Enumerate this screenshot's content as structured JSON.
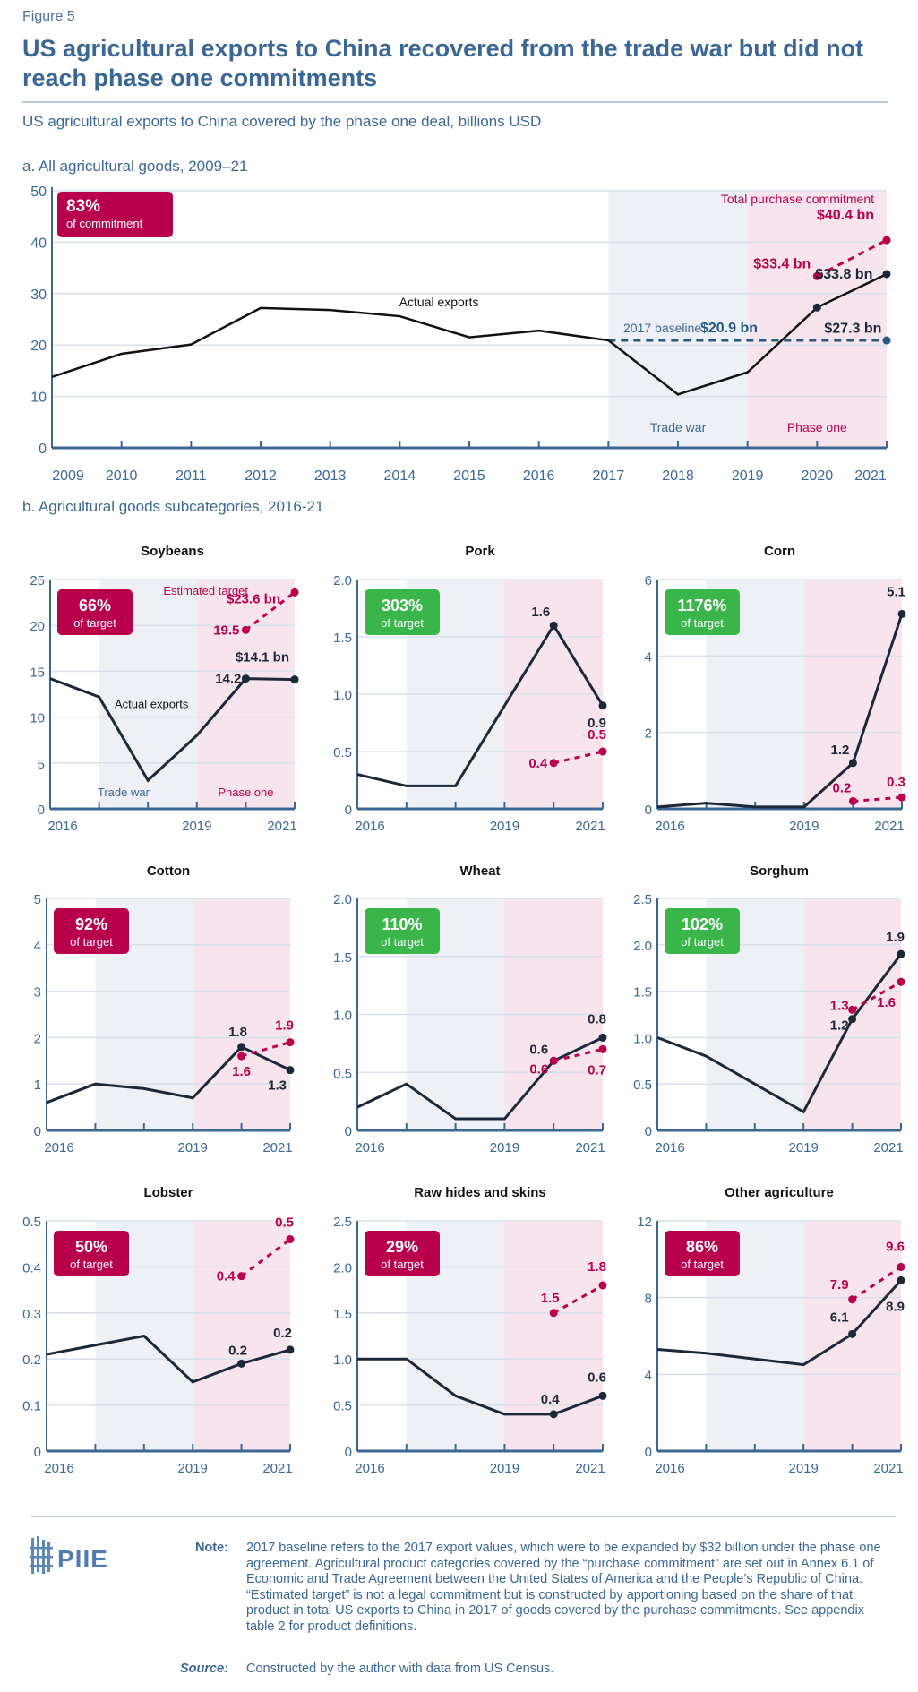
{
  "figure_label": "Figure 5",
  "title": "US agricultural exports to China recovered from the trade war but did not reach phase one commitments",
  "subtitle": "US agricultural exports to China covered by the phase one deal, billions USD",
  "colors": {
    "text_blue": "#3b6795",
    "crimson": "#b8004c",
    "green": "#3ab54a",
    "line": "#1b2838",
    "trade_war_shade": "#edf0f5",
    "phase_one_shade": "#f8e4ec",
    "baseline": "#235a82",
    "grid": "#d8e1eb"
  },
  "chart_data": [
    {
      "type": "line",
      "title": "a. All agricultural goods, 2009–21",
      "x": [
        2009,
        2010,
        2011,
        2012,
        2013,
        2014,
        2015,
        2016,
        2017,
        2018,
        2019,
        2020,
        2021
      ],
      "xticklabels": [
        "2009",
        "2010",
        "2011",
        "2012",
        "2013",
        "2014",
        "2015",
        "2016",
        "2017",
        "2018",
        "2019",
        "2020",
        "2021"
      ],
      "ylim": [
        0,
        50
      ],
      "yticks": [
        "0",
        "10",
        "20",
        "30",
        "40",
        "50"
      ],
      "grid": true,
      "series": [
        {
          "name": "Actual exports",
          "values": [
            13.8,
            18.3,
            20.1,
            27.2,
            26.8,
            25.6,
            21.5,
            22.8,
            20.9,
            10.4,
            14.7,
            27.3,
            33.8
          ]
        },
        {
          "name": "Total purchase commitment",
          "x": [
            2020,
            2021
          ],
          "values": [
            33.4,
            40.4
          ],
          "style": "dashed"
        },
        {
          "name": "2017 baseline",
          "x": [
            2017,
            2021
          ],
          "values": [
            20.9,
            20.9
          ],
          "style": "dashed"
        }
      ],
      "shaded_regions": [
        {
          "label": "Trade war",
          "from": 2017,
          "to": 2019
        },
        {
          "label": "Phase one",
          "from": 2019,
          "to": 2021
        }
      ],
      "badge": {
        "value": "83%",
        "caption": "of commitment",
        "color": "crimson"
      },
      "annotations": {
        "commitment_label": "Total purchase commitment",
        "commitment_value": "$40.4 bn",
        "commitment_2020": "$33.4 bn",
        "actual_2021": "$33.8 bn",
        "actual_2020": "$27.3 bn",
        "baseline_label": "2017 baseline",
        "baseline_value": "$20.9 bn",
        "actual_label": "Actual exports"
      }
    }
  ],
  "panel_b": {
    "title": "b. Agricultural goods subcategories, 2016-21",
    "x": [
      2016,
      2017,
      2018,
      2019,
      2020,
      2021
    ],
    "xticklabels": [
      "2016",
      "2019",
      "2021"
    ],
    "panels": [
      {
        "type": "line",
        "title": "Soybeans",
        "ylim": [
          0,
          25
        ],
        "yticks": [
          "0",
          "5",
          "10",
          "15",
          "20",
          "25"
        ],
        "actual": [
          14.2,
          12.2,
          3.1,
          8.0,
          14.2,
          14.1
        ],
        "target": [
          19.5,
          23.6
        ],
        "badge": {
          "value": "66%",
          "caption": "of target",
          "color": "crimson"
        },
        "labels": {
          "a2020": "14.2",
          "a2021": "$14.1 bn",
          "t2020": "19.5",
          "t2021": "$23.6 bn"
        },
        "notes": {
          "target_label": "Estimated target",
          "actual_label": "Actual exports",
          "trade_war": "Trade war",
          "phase_one": "Phase one"
        }
      },
      {
        "type": "line",
        "title": "Pork",
        "ylim": [
          0,
          2
        ],
        "yticks": [
          "0",
          "0.5",
          "1.0",
          "1.5",
          "2.0"
        ],
        "actual": [
          0.3,
          0.2,
          0.2,
          0.9,
          1.6,
          0.9
        ],
        "target": [
          0.4,
          0.5
        ],
        "badge": {
          "value": "303%",
          "caption": "of target",
          "color": "green"
        },
        "labels": {
          "a2020": "1.6",
          "a2021": "0.9",
          "t2020": "0.4",
          "t2021": "0.5"
        }
      },
      {
        "type": "line",
        "title": "Corn",
        "ylim": [
          0,
          6
        ],
        "yticks": [
          "0",
          "2",
          "4",
          "6"
        ],
        "actual": [
          0.05,
          0.15,
          0.05,
          0.05,
          1.2,
          5.1
        ],
        "target": [
          0.2,
          0.3
        ],
        "badge": {
          "value": "1176%",
          "caption": "of target",
          "color": "green"
        },
        "labels": {
          "a2020": "1.2",
          "a2021": "5.1",
          "t2020": "0.2",
          "t2021": "0.3"
        }
      },
      {
        "type": "line",
        "title": "Cotton",
        "ylim": [
          0,
          5
        ],
        "yticks": [
          "0",
          "1",
          "2",
          "3",
          "4",
          "5"
        ],
        "actual": [
          0.6,
          1.0,
          0.9,
          0.7,
          1.8,
          1.3
        ],
        "target": [
          1.6,
          1.9
        ],
        "badge": {
          "value": "92%",
          "caption": "of target",
          "color": "crimson"
        },
        "labels": {
          "a2020": "1.8",
          "a2021": "1.3",
          "t2020": "1.6",
          "t2021": "1.9"
        }
      },
      {
        "type": "line",
        "title": "Wheat",
        "ylim": [
          0,
          2
        ],
        "yticks": [
          "0",
          "0.5",
          "1.0",
          "1.5",
          "2.0"
        ],
        "actual": [
          0.2,
          0.4,
          0.1,
          0.1,
          0.6,
          0.8
        ],
        "target": [
          0.6,
          0.7
        ],
        "badge": {
          "value": "110%",
          "caption": "of target",
          "color": "green"
        },
        "labels": {
          "a2020": "0.6",
          "a2021": "0.8",
          "t2020": "0.6",
          "t2021": "0.7"
        }
      },
      {
        "type": "line",
        "title": "Sorghum",
        "ylim": [
          0,
          2.5
        ],
        "yticks": [
          "0",
          "0.5",
          "1.0",
          "1.5",
          "2.0",
          "2.5"
        ],
        "actual": [
          1.0,
          0.8,
          0.5,
          0.2,
          1.2,
          1.9
        ],
        "target": [
          1.3,
          1.6
        ],
        "badge": {
          "value": "102%",
          "caption": "of target",
          "color": "green"
        },
        "labels": {
          "a2020": "1.2",
          "a2021": "1.9",
          "t2020": "1.3",
          "t2021": "1.6"
        }
      },
      {
        "type": "line",
        "title": "Lobster",
        "ylim": [
          0,
          0.5
        ],
        "yticks": [
          "0",
          "0.1",
          "0.2",
          "0.3",
          "0.4",
          "0.5"
        ],
        "actual": [
          0.21,
          0.23,
          0.25,
          0.15,
          0.19,
          0.22
        ],
        "target": [
          0.38,
          0.46
        ],
        "badge": {
          "value": "50%",
          "caption": "of target",
          "color": "crimson"
        },
        "labels": {
          "a2020": "0.2",
          "a2021": "0.2",
          "t2020": "0.4",
          "t2021": "0.5"
        }
      },
      {
        "type": "line",
        "title": "Raw hides and skins",
        "ylim": [
          0,
          2.5
        ],
        "yticks": [
          "0",
          "0.5",
          "1.0",
          "1.5",
          "2.0",
          "2.5"
        ],
        "actual": [
          1.0,
          1.0,
          0.6,
          0.4,
          0.4,
          0.6
        ],
        "target": [
          1.5,
          1.8
        ],
        "badge": {
          "value": "29%",
          "caption": "of target",
          "color": "crimson"
        },
        "labels": {
          "a2020": "0.4",
          "a2021": "0.6",
          "t2020": "1.5",
          "t2021": "1.8"
        }
      },
      {
        "type": "line",
        "title": "Other agriculture",
        "ylim": [
          0,
          12
        ],
        "yticks": [
          "0",
          "4",
          "8",
          "12"
        ],
        "actual": [
          5.3,
          5.1,
          4.8,
          4.5,
          6.1,
          8.9
        ],
        "target": [
          7.9,
          9.6
        ],
        "badge": {
          "value": "86%",
          "caption": "of target",
          "color": "crimson"
        },
        "labels": {
          "a2020": "6.1",
          "a2021": "8.9",
          "t2020": "7.9",
          "t2021": "9.6"
        }
      }
    ]
  },
  "footer": {
    "logo": "PIIE",
    "note_label": "Note:",
    "note_text": "2017 baseline refers to the 2017 export values, which were to be expanded by $32 billion under the phase one agreement. Agricultural product categories covered by the “purchase commitment” are set out in Annex 6.1 of Economic and Trade Agreement between the United States of America and the People’s Republic of China. “Estimated target” is not a legal commitment but is constructed by apportioning based on the share of that product in total US exports to China in 2017 of goods covered by the purchase commitments. See appendix table 2 for product definitions.",
    "source_label": "Source:",
    "source_text": "Constructed by the author with data from US Census."
  }
}
